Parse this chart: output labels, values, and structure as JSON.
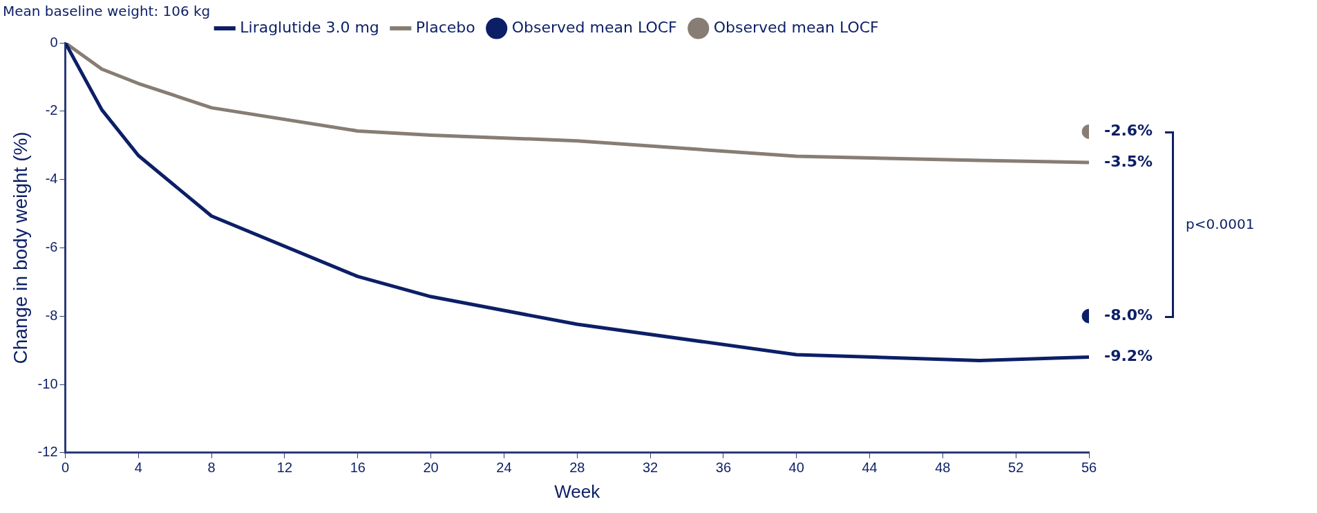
{
  "chart_data": {
    "type": "line",
    "xlabel": "Week",
    "ylabel": "Change in body weight (%)",
    "x": [
      0,
      2,
      4,
      8,
      16,
      20,
      28,
      40,
      50,
      56
    ],
    "xlim": [
      0,
      56
    ],
    "xticks": [
      0,
      4,
      8,
      12,
      16,
      20,
      24,
      28,
      32,
      36,
      40,
      44,
      48,
      52,
      56
    ],
    "ylim": [
      -12,
      0
    ],
    "yticks": [
      -12,
      -10,
      -8,
      -6,
      -4,
      -2,
      0
    ],
    "grid": false,
    "legend": "top",
    "series": [
      {
        "name": "Liraglutide 3.0 mg",
        "color": "#0c1f66",
        "values": [
          0,
          -1.96,
          -3.3,
          -5.07,
          -6.84,
          -7.43,
          -8.24,
          -9.13,
          -9.3,
          -9.2
        ],
        "value_labels": [
          null,
          null,
          null,
          null,
          null,
          null,
          null,
          null,
          null,
          "-9.2%"
        ]
      },
      {
        "name": "Placebo",
        "color": "#877d74",
        "values": [
          0,
          -0.77,
          -1.19,
          -1.9,
          -2.58,
          -2.7,
          -2.87,
          -3.32,
          -3.44,
          -3.5
        ],
        "value_labels": [
          null,
          null,
          null,
          null,
          null,
          null,
          null,
          null,
          null,
          "-3.5%"
        ]
      },
      {
        "name": "Observed mean LOCF",
        "type": "scatter",
        "color": "#0c1f66",
        "x": [
          56
        ],
        "values": [
          -8.0
        ],
        "value_labels": [
          "-8.0%"
        ]
      },
      {
        "name": "Observed mean LOCF",
        "type": "scatter",
        "color": "#877d74",
        "x": [
          56
        ],
        "values": [
          -2.6
        ],
        "value_labels": [
          "-2.6%"
        ]
      }
    ],
    "annotations": [
      "Mean baseline weight: 106 kg",
      "p<0.0001"
    ]
  }
}
